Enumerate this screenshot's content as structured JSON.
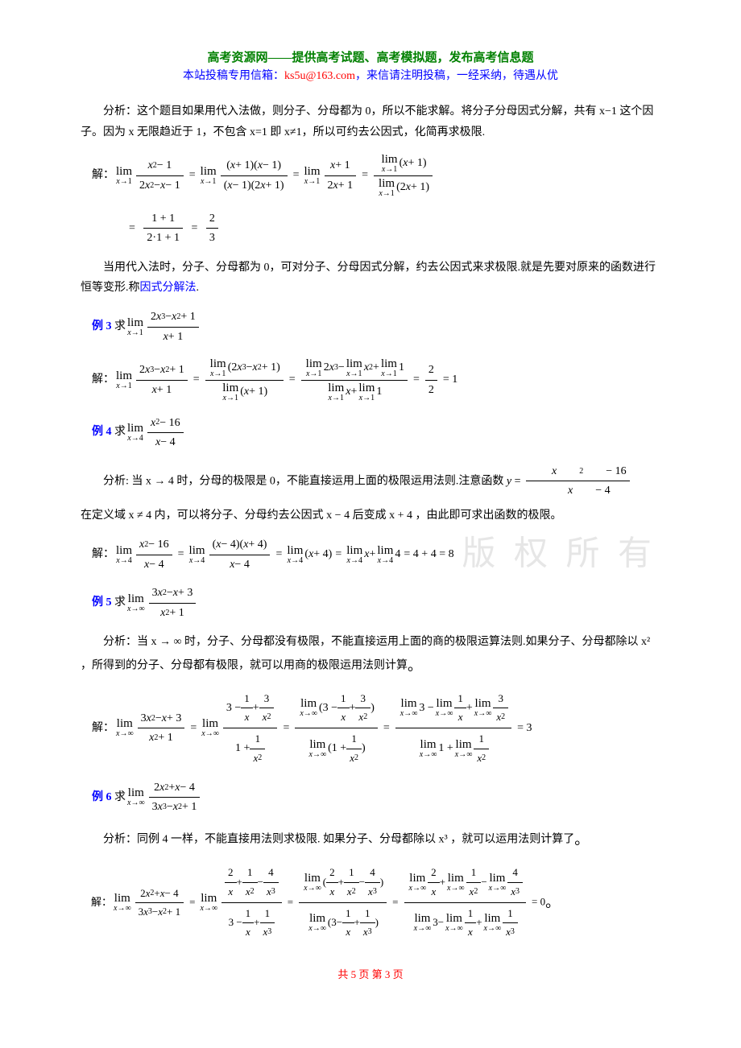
{
  "header": {
    "line1": "高考资源网——提供高考试题、高考模拟题，发布高考信息题",
    "line2_prefix": "本站投稿专用信箱：",
    "email": "ks5u@163.com",
    "line2_suffix": "，来信请注明投稿，一经采纳，待遇从优"
  },
  "analysis1": "分析：这个题目如果用代入法做，则分子、分母都为 0，所以不能求解。将分子分母因式分解，共有 x−1 这个因子。因为 x 无限趋近于 1，不包含 x=1 即 x≠1，所以可约去公因式，化简再求极限.",
  "solve_label": "解：",
  "explanation1_prefix": "当用代入法时，分子、分母都为 0，可对分子、分母因式分解，约去公因式来求极限.就是先要对原来的函数进行恒等变形.称",
  "explanation1_blue": "因式分解法",
  "explanation1_suffix": ".",
  "example3": {
    "label": "例 3",
    "prefix": "求",
    "expr_num": "2x³ − x² + 1",
    "expr_den": "x + 1",
    "result": "1"
  },
  "example4": {
    "label": "例 4",
    "prefix": "求",
    "expr_num": "x² − 16",
    "expr_den": "x − 4",
    "analysis_prefix": "分析: 当 x → 4 时，分母的极限是 0，不能直接运用上面的极限运用法则.注意函数 ",
    "analysis_y": "y = ",
    "analysis_suffix": "在定义域 x ≠ 4 内，可以将分子、分母约去公因式 x − 4 后变成 x + 4 ，由此即可求出函数的极限。",
    "result": "8"
  },
  "example5": {
    "label": "例 5",
    "prefix": "求",
    "expr_num": "3x² − x + 3",
    "expr_den": "x² + 1",
    "analysis": "分析：当 x → ∞ 时，分子、分母都没有极限，不能直接运用上面的商的极限运算法则.如果分子、分母都除以 x² ，所得到的分子、分母都有极限，就可以用商的极限运用法则计算",
    "result": "3"
  },
  "example6": {
    "label": "例 6",
    "prefix": "求",
    "expr_num": "2x² + x − 4",
    "expr_den": "3x³ − x² + 1",
    "analysis": "分析：同例 4 一样，不能直接用法则求极限. 如果分子、分母都除以 x³ ，就可以运用法则计算了",
    "result": "0"
  },
  "footer": "共 5 页 第 3 页",
  "watermark": "版 权 所 有",
  "colors": {
    "green": "#008000",
    "blue": "#0000ff",
    "red": "#ff0000",
    "black": "#000000",
    "watermark": "#e6e6e6"
  },
  "formulas": {
    "f1": {
      "step1_num": "x² − 1",
      "step1_den": "2x² − x − 1",
      "step2_num": "(x + 1)(x − 1)",
      "step2_den": "(x − 1)(2x + 1)",
      "step3_num": "x + 1",
      "step3_den": "2x + 1",
      "step4_num": "lim(x+1)",
      "step4_den": "lim(2x+1)",
      "step5_num": "1 + 1",
      "step5_den": "2·1 + 1",
      "result": "2/3"
    }
  }
}
